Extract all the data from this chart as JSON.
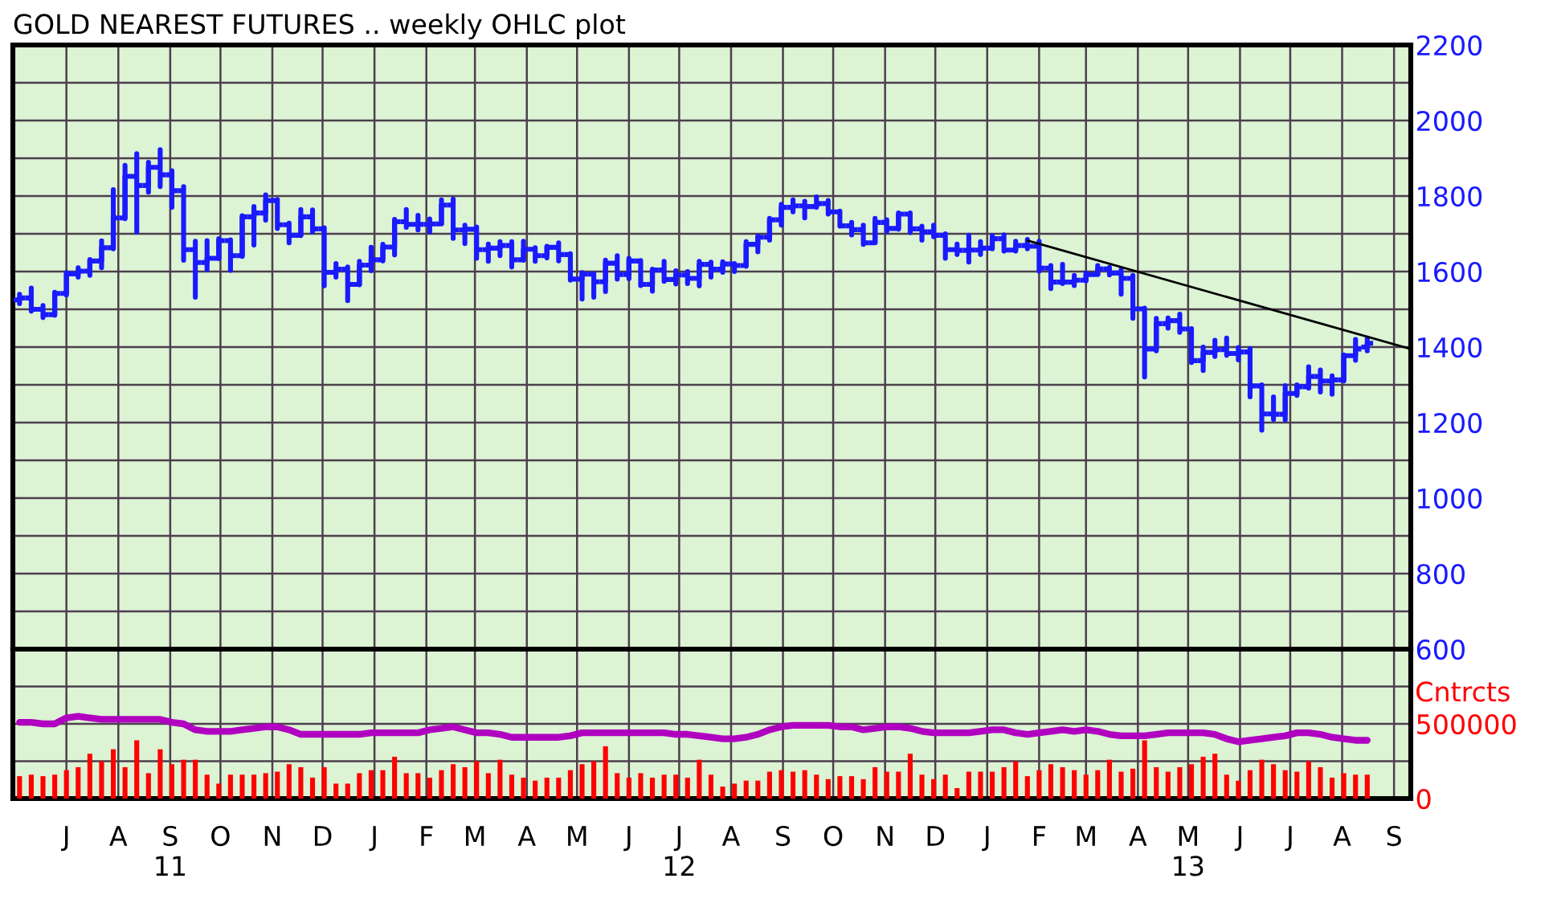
{
  "chart_data": [
    {
      "type": "candlestick",
      "title": "GOLD NEAREST FUTURES .. weekly OHLC plot",
      "color": "#1a1aff",
      "x": [
        "2011-06-17",
        "2011-06-24",
        "2011-07-01",
        "2011-07-08",
        "2011-07-15",
        "2011-07-22",
        "2011-07-29",
        "2011-08-05",
        "2011-08-12",
        "2011-08-19",
        "2011-08-26",
        "2011-09-02",
        "2011-09-09",
        "2011-09-16",
        "2011-09-23",
        "2011-09-30",
        "2011-10-07",
        "2011-10-14",
        "2011-10-21",
        "2011-10-28",
        "2011-11-04",
        "2011-11-11",
        "2011-11-18",
        "2011-11-25",
        "2011-12-02",
        "2011-12-09",
        "2011-12-16",
        "2011-12-23",
        "2011-12-30",
        "2012-01-06",
        "2012-01-13",
        "2012-01-20",
        "2012-01-27",
        "2012-02-03",
        "2012-02-10",
        "2012-02-17",
        "2012-02-24",
        "2012-03-02",
        "2012-03-09",
        "2012-03-16",
        "2012-03-23",
        "2012-03-30",
        "2012-04-06",
        "2012-04-13",
        "2012-04-20",
        "2012-04-27",
        "2012-05-04",
        "2012-05-11",
        "2012-05-18",
        "2012-05-25",
        "2012-06-01",
        "2012-06-08",
        "2012-06-15",
        "2012-06-22",
        "2012-06-29",
        "2012-07-06",
        "2012-07-13",
        "2012-07-20",
        "2012-07-27",
        "2012-08-03",
        "2012-08-10",
        "2012-08-17",
        "2012-08-24",
        "2012-08-31",
        "2012-09-07",
        "2012-09-14",
        "2012-09-21",
        "2012-09-28",
        "2012-10-05",
        "2012-10-12",
        "2012-10-19",
        "2012-10-26",
        "2012-11-02",
        "2012-11-09",
        "2012-11-16",
        "2012-11-23",
        "2012-11-30",
        "2012-12-07",
        "2012-12-14",
        "2012-12-21",
        "2012-12-28",
        "2013-01-04",
        "2013-01-11",
        "2013-01-18",
        "2013-01-25",
        "2013-02-01",
        "2013-02-08",
        "2013-02-15",
        "2013-02-22",
        "2013-03-01",
        "2013-03-08",
        "2013-03-15",
        "2013-03-22",
        "2013-03-29",
        "2013-04-05",
        "2013-04-12",
        "2013-04-19",
        "2013-04-26",
        "2013-05-03",
        "2013-05-10",
        "2013-05-17",
        "2013-05-24",
        "2013-05-31",
        "2013-06-07",
        "2013-06-14",
        "2013-06-21",
        "2013-06-28",
        "2013-07-05",
        "2013-07-12",
        "2013-07-19",
        "2013-07-26",
        "2013-08-02",
        "2013-08-09",
        "2013-08-16",
        "2013-08-23",
        "2013-08-30"
      ],
      "ohlc": [
        [
          1525,
          1540,
          1515,
          1530
        ],
        [
          1530,
          1556,
          1495,
          1500
        ],
        [
          1500,
          1510,
          1478,
          1486
        ],
        [
          1486,
          1545,
          1484,
          1542
        ],
        [
          1542,
          1597,
          1538,
          1594
        ],
        [
          1594,
          1610,
          1585,
          1601
        ],
        [
          1601,
          1632,
          1590,
          1628
        ],
        [
          1628,
          1681,
          1610,
          1663
        ],
        [
          1663,
          1817,
          1660,
          1742
        ],
        [
          1742,
          1881,
          1740,
          1852
        ],
        [
          1852,
          1912,
          1705,
          1828
        ],
        [
          1828,
          1889,
          1810,
          1876
        ],
        [
          1876,
          1923,
          1825,
          1856
        ],
        [
          1856,
          1867,
          1770,
          1814
        ],
        [
          1814,
          1825,
          1630,
          1658
        ],
        [
          1658,
          1680,
          1532,
          1624
        ],
        [
          1624,
          1682,
          1605,
          1635
        ],
        [
          1635,
          1687,
          1634,
          1682
        ],
        [
          1682,
          1684,
          1603,
          1642
        ],
        [
          1642,
          1748,
          1640,
          1745
        ],
        [
          1745,
          1772,
          1670,
          1755
        ],
        [
          1755,
          1803,
          1736,
          1788
        ],
        [
          1788,
          1791,
          1714,
          1724
        ],
        [
          1724,
          1728,
          1676,
          1696
        ],
        [
          1696,
          1764,
          1695,
          1745
        ],
        [
          1745,
          1763,
          1705,
          1713
        ],
        [
          1713,
          1716,
          1562,
          1598
        ],
        [
          1598,
          1621,
          1585,
          1606
        ],
        [
          1606,
          1612,
          1523,
          1566
        ],
        [
          1566,
          1627,
          1565,
          1617
        ],
        [
          1617,
          1664,
          1602,
          1631
        ],
        [
          1631,
          1672,
          1628,
          1665
        ],
        [
          1665,
          1738,
          1644,
          1732
        ],
        [
          1732,
          1764,
          1717,
          1725
        ],
        [
          1725,
          1749,
          1710,
          1725
        ],
        [
          1725,
          1739,
          1705,
          1726
        ],
        [
          1726,
          1790,
          1726,
          1776
        ],
        [
          1776,
          1792,
          1688,
          1710
        ],
        [
          1710,
          1723,
          1674,
          1712
        ],
        [
          1712,
          1718,
          1635,
          1658
        ],
        [
          1658,
          1673,
          1627,
          1662
        ],
        [
          1662,
          1679,
          1642,
          1669
        ],
        [
          1669,
          1679,
          1612,
          1631
        ],
        [
          1631,
          1680,
          1630,
          1659
        ],
        [
          1659,
          1663,
          1627,
          1642
        ],
        [
          1642,
          1667,
          1636,
          1664
        ],
        [
          1664,
          1676,
          1628,
          1645
        ],
        [
          1645,
          1647,
          1577,
          1580
        ],
        [
          1580,
          1597,
          1527,
          1593
        ],
        [
          1593,
          1594,
          1532,
          1573
        ],
        [
          1573,
          1630,
          1547,
          1622
        ],
        [
          1622,
          1642,
          1580,
          1592
        ],
        [
          1592,
          1635,
          1581,
          1628
        ],
        [
          1628,
          1629,
          1563,
          1566
        ],
        [
          1566,
          1606,
          1548,
          1604
        ],
        [
          1604,
          1627,
          1574,
          1579
        ],
        [
          1579,
          1602,
          1567,
          1591
        ],
        [
          1591,
          1600,
          1568,
          1582
        ],
        [
          1582,
          1627,
          1562,
          1619
        ],
        [
          1619,
          1625,
          1585,
          1606
        ],
        [
          1606,
          1626,
          1598,
          1620
        ],
        [
          1620,
          1621,
          1600,
          1616
        ],
        [
          1616,
          1679,
          1614,
          1672
        ],
        [
          1672,
          1694,
          1652,
          1691
        ],
        [
          1691,
          1741,
          1683,
          1737
        ],
        [
          1737,
          1778,
          1723,
          1770
        ],
        [
          1770,
          1790,
          1758,
          1774
        ],
        [
          1774,
          1786,
          1742,
          1772
        ],
        [
          1772,
          1798,
          1770,
          1780
        ],
        [
          1780,
          1788,
          1752,
          1758
        ],
        [
          1758,
          1760,
          1720,
          1721
        ],
        [
          1721,
          1730,
          1697,
          1711
        ],
        [
          1711,
          1723,
          1672,
          1676
        ],
        [
          1676,
          1741,
          1676,
          1730
        ],
        [
          1730,
          1737,
          1706,
          1714
        ],
        [
          1714,
          1755,
          1712,
          1752
        ],
        [
          1752,
          1755,
          1703,
          1713
        ],
        [
          1713,
          1720,
          1683,
          1705
        ],
        [
          1705,
          1723,
          1692,
          1696
        ],
        [
          1696,
          1700,
          1635,
          1658
        ],
        [
          1658,
          1673,
          1645,
          1656
        ],
        [
          1656,
          1696,
          1625,
          1657
        ],
        [
          1657,
          1679,
          1645,
          1662
        ],
        [
          1662,
          1695,
          1660,
          1687
        ],
        [
          1687,
          1697,
          1654,
          1657
        ],
        [
          1657,
          1680,
          1654,
          1669
        ],
        [
          1669,
          1685,
          1660,
          1667
        ],
        [
          1667,
          1680,
          1601,
          1609
        ],
        [
          1609,
          1616,
          1555,
          1572
        ],
        [
          1572,
          1619,
          1568,
          1572
        ],
        [
          1572,
          1590,
          1563,
          1577
        ],
        [
          1577,
          1596,
          1575,
          1592
        ],
        [
          1592,
          1616,
          1592,
          1607
        ],
        [
          1607,
          1611,
          1591,
          1596
        ],
        [
          1596,
          1605,
          1540,
          1582
        ],
        [
          1582,
          1590,
          1476,
          1501
        ],
        [
          1501,
          1503,
          1321,
          1395
        ],
        [
          1395,
          1476,
          1390,
          1462
        ],
        [
          1462,
          1477,
          1450,
          1470
        ],
        [
          1470,
          1487,
          1439,
          1448
        ],
        [
          1448,
          1449,
          1359,
          1364
        ],
        [
          1364,
          1400,
          1338,
          1386
        ],
        [
          1386,
          1418,
          1375,
          1393
        ],
        [
          1393,
          1424,
          1378,
          1383
        ],
        [
          1383,
          1399,
          1366,
          1387
        ],
        [
          1387,
          1396,
          1268,
          1297
        ],
        [
          1297,
          1300,
          1180,
          1223
        ],
        [
          1223,
          1268,
          1208,
          1222
        ],
        [
          1222,
          1298,
          1207,
          1277
        ],
        [
          1277,
          1300,
          1272,
          1295
        ],
        [
          1295,
          1348,
          1291,
          1322
        ],
        [
          1322,
          1339,
          1281,
          1310
        ],
        [
          1310,
          1324,
          1275,
          1313
        ],
        [
          1313,
          1379,
          1310,
          1377
        ],
        [
          1377,
          1420,
          1365,
          1395
        ],
        [
          1400,
          1424,
          1390,
          1410
        ]
      ],
      "series": [
        {
          "type": "line",
          "x": [
            "2013-02-08",
            "2013-09-25"
          ],
          "values": [
            1682,
            1395
          ],
          "color": "#000000"
        }
      ],
      "xlim": [
        "2011-06-13",
        "2013-09-25"
      ],
      "xticks": [
        {
          "value": "2011-07-15",
          "label": null
        },
        {
          "value": "2011-08-15",
          "label": null
        },
        {
          "value": "2011-09-15",
          "label": null
        },
        {
          "value": "2011-10-15",
          "label": null
        },
        {
          "value": "2011-11-15",
          "label": null
        },
        {
          "value": "2011-12-15",
          "label": null
        },
        {
          "value": "2012-01-15",
          "label": null
        },
        {
          "value": "2012-02-15",
          "label": null
        },
        {
          "value": "2012-03-15",
          "label": null
        },
        {
          "value": "2012-04-15",
          "label": null
        },
        {
          "value": "2012-05-15",
          "label": null
        },
        {
          "value": "2012-06-15",
          "label": null
        },
        {
          "value": "2012-07-15",
          "label": null
        },
        {
          "value": "2012-08-15",
          "label": null
        },
        {
          "value": "2012-09-15",
          "label": null
        },
        {
          "value": "2012-10-15",
          "label": null
        },
        {
          "value": "2012-11-15",
          "label": null
        },
        {
          "value": "2012-12-15",
          "label": null
        },
        {
          "value": "2013-01-15",
          "label": null
        },
        {
          "value": "2013-02-15",
          "label": null
        },
        {
          "value": "2013-03-15",
          "label": null
        },
        {
          "value": "2013-04-15",
          "label": null
        },
        {
          "value": "2013-05-15",
          "label": null
        },
        {
          "value": "2013-06-15",
          "label": null
        },
        {
          "value": "2013-07-15",
          "label": null
        },
        {
          "value": "2013-08-15",
          "label": null
        },
        {
          "value": "2013-09-15",
          "label": null
        }
      ],
      "ylim": [
        600,
        2200
      ],
      "yticks": [
        600,
        {
          "value": 700,
          "label": null
        },
        800,
        {
          "value": 900,
          "label": null
        },
        1000,
        {
          "value": 1100,
          "label": null
        },
        1200,
        {
          "value": 1300,
          "label": null
        },
        1400,
        {
          "value": 1500,
          "label": null
        },
        1600,
        {
          "value": 1700,
          "label": null
        },
        1800,
        {
          "value": 1900,
          "label": null
        },
        2000,
        {
          "value": 2100,
          "label": null
        },
        2200
      ],
      "grid": true,
      "tick_labels": "y"
    },
    {
      "type": "bar",
      "ylabel": "Cntrcts",
      "x": [
        "2011-06-17",
        "2011-06-24",
        "2011-07-01",
        "2011-07-08",
        "2011-07-15",
        "2011-07-22",
        "2011-07-29",
        "2011-08-05",
        "2011-08-12",
        "2011-08-19",
        "2011-08-26",
        "2011-09-02",
        "2011-09-09",
        "2011-09-16",
        "2011-09-23",
        "2011-09-30",
        "2011-10-07",
        "2011-10-14",
        "2011-10-21",
        "2011-10-28",
        "2011-11-04",
        "2011-11-11",
        "2011-11-18",
        "2011-11-25",
        "2011-12-02",
        "2011-12-09",
        "2011-12-16",
        "2011-12-23",
        "2011-12-30",
        "2012-01-06",
        "2012-01-13",
        "2012-01-20",
        "2012-01-27",
        "2012-02-03",
        "2012-02-10",
        "2012-02-17",
        "2012-02-24",
        "2012-03-02",
        "2012-03-09",
        "2012-03-16",
        "2012-03-23",
        "2012-03-30",
        "2012-04-06",
        "2012-04-13",
        "2012-04-20",
        "2012-04-27",
        "2012-05-04",
        "2012-05-11",
        "2012-05-18",
        "2012-05-25",
        "2012-06-01",
        "2012-06-08",
        "2012-06-15",
        "2012-06-22",
        "2012-06-29",
        "2012-07-06",
        "2012-07-13",
        "2012-07-20",
        "2012-07-27",
        "2012-08-03",
        "2012-08-10",
        "2012-08-17",
        "2012-08-24",
        "2012-08-31",
        "2012-09-07",
        "2012-09-14",
        "2012-09-21",
        "2012-09-28",
        "2012-10-05",
        "2012-10-12",
        "2012-10-19",
        "2012-10-26",
        "2012-11-02",
        "2012-11-09",
        "2012-11-16",
        "2012-11-23",
        "2012-11-30",
        "2012-12-07",
        "2012-12-14",
        "2012-12-21",
        "2012-12-28",
        "2013-01-04",
        "2013-01-11",
        "2013-01-18",
        "2013-01-25",
        "2013-02-01",
        "2013-02-08",
        "2013-02-15",
        "2013-02-22",
        "2013-03-01",
        "2013-03-08",
        "2013-03-15",
        "2013-03-22",
        "2013-03-29",
        "2013-04-05",
        "2013-04-12",
        "2013-04-19",
        "2013-04-26",
        "2013-05-03",
        "2013-05-10",
        "2013-05-17",
        "2013-05-24",
        "2013-05-31",
        "2013-06-07",
        "2013-06-14",
        "2013-06-21",
        "2013-06-28",
        "2013-07-05",
        "2013-07-12",
        "2013-07-19",
        "2013-07-26",
        "2013-08-02",
        "2013-08-09",
        "2013-08-16",
        "2013-08-23",
        "2013-08-30"
      ],
      "series": [
        {
          "type": "bar",
          "color": "#ff0000",
          "values": [
            150000,
            160000,
            150000,
            160000,
            190000,
            210000,
            300000,
            250000,
            330000,
            210000,
            390000,
            170000,
            330000,
            230000,
            260000,
            260000,
            160000,
            100000,
            160000,
            160000,
            160000,
            170000,
            180000,
            230000,
            210000,
            140000,
            210000,
            100000,
            100000,
            170000,
            190000,
            190000,
            280000,
            170000,
            170000,
            140000,
            190000,
            230000,
            210000,
            250000,
            170000,
            260000,
            160000,
            140000,
            120000,
            140000,
            140000,
            190000,
            230000,
            250000,
            350000,
            170000,
            140000,
            170000,
            140000,
            160000,
            160000,
            140000,
            260000,
            160000,
            80000,
            100000,
            120000,
            120000,
            180000,
            190000,
            180000,
            190000,
            160000,
            130000,
            150000,
            150000,
            130000,
            210000,
            180000,
            180000,
            300000,
            160000,
            130000,
            160000,
            70000,
            180000,
            180000,
            180000,
            210000,
            250000,
            150000,
            190000,
            230000,
            210000,
            190000,
            160000,
            190000,
            260000,
            180000,
            200000,
            390000,
            210000,
            180000,
            210000,
            230000,
            280000,
            300000,
            160000,
            120000,
            190000,
            260000,
            230000,
            190000,
            180000,
            250000,
            210000,
            140000,
            170000,
            160000,
            160000
          ]
        },
        {
          "type": "line",
          "color": "#b000c0",
          "values": [
            510000,
            510000,
            500000,
            500000,
            540000,
            550000,
            540000,
            530000,
            530000,
            530000,
            530000,
            530000,
            530000,
            510000,
            500000,
            460000,
            450000,
            450000,
            450000,
            460000,
            470000,
            480000,
            480000,
            460000,
            430000,
            430000,
            430000,
            430000,
            430000,
            430000,
            440000,
            440000,
            440000,
            440000,
            440000,
            460000,
            470000,
            480000,
            460000,
            440000,
            440000,
            430000,
            410000,
            410000,
            410000,
            410000,
            410000,
            420000,
            440000,
            440000,
            440000,
            440000,
            440000,
            440000,
            440000,
            440000,
            430000,
            430000,
            420000,
            410000,
            400000,
            400000,
            410000,
            430000,
            460000,
            480000,
            490000,
            490000,
            490000,
            490000,
            480000,
            480000,
            460000,
            470000,
            480000,
            480000,
            470000,
            450000,
            440000,
            440000,
            440000,
            440000,
            450000,
            460000,
            460000,
            440000,
            430000,
            440000,
            450000,
            460000,
            450000,
            460000,
            450000,
            430000,
            420000,
            420000,
            420000,
            430000,
            440000,
            440000,
            440000,
            440000,
            430000,
            400000,
            380000,
            390000,
            400000,
            410000,
            420000,
            440000,
            440000,
            430000,
            410000,
            400000,
            390000,
            390000
          ]
        }
      ],
      "xlim": [
        "2011-06-13",
        "2013-09-25"
      ],
      "xticks": [
        {
          "value": "2011-07-15",
          "label": "J"
        },
        {
          "value": "2011-08-15",
          "label": "A"
        },
        {
          "value": "2011-09-15",
          "label": "S\n11"
        },
        {
          "value": "2011-10-15",
          "label": "O"
        },
        {
          "value": "2011-11-15",
          "label": "N"
        },
        {
          "value": "2011-12-15",
          "label": "D"
        },
        {
          "value": "2012-01-15",
          "label": "J"
        },
        {
          "value": "2012-02-15",
          "label": "F"
        },
        {
          "value": "2012-03-15",
          "label": "M"
        },
        {
          "value": "2012-04-15",
          "label": "A"
        },
        {
          "value": "2012-05-15",
          "label": "M"
        },
        {
          "value": "2012-06-15",
          "label": "J"
        },
        {
          "value": "2012-07-15",
          "label": "J\n12"
        },
        {
          "value": "2012-08-15",
          "label": "A"
        },
        {
          "value": "2012-09-15",
          "label": "S"
        },
        {
          "value": "2012-10-15",
          "label": "O"
        },
        {
          "value": "2012-11-15",
          "label": "N"
        },
        {
          "value": "2012-12-15",
          "label": "D"
        },
        {
          "value": "2013-01-15",
          "label": "J"
        },
        {
          "value": "2013-02-15",
          "label": "F"
        },
        {
          "value": "2013-03-15",
          "label": "M"
        },
        {
          "value": "2013-04-15",
          "label": "A"
        },
        {
          "value": "2013-05-15",
          "label": "M\n13"
        },
        {
          "value": "2013-06-15",
          "label": "J"
        },
        {
          "value": "2013-07-15",
          "label": "J"
        },
        {
          "value": "2013-08-15",
          "label": "A"
        },
        {
          "value": "2013-09-15",
          "label": "S"
        }
      ],
      "ylim": [
        0,
        1000000
      ],
      "yticks": [
        0,
        {
          "value": 250000,
          "label": null
        },
        500000,
        {
          "value": 750000,
          "label": null
        }
      ],
      "grid": true
    }
  ]
}
